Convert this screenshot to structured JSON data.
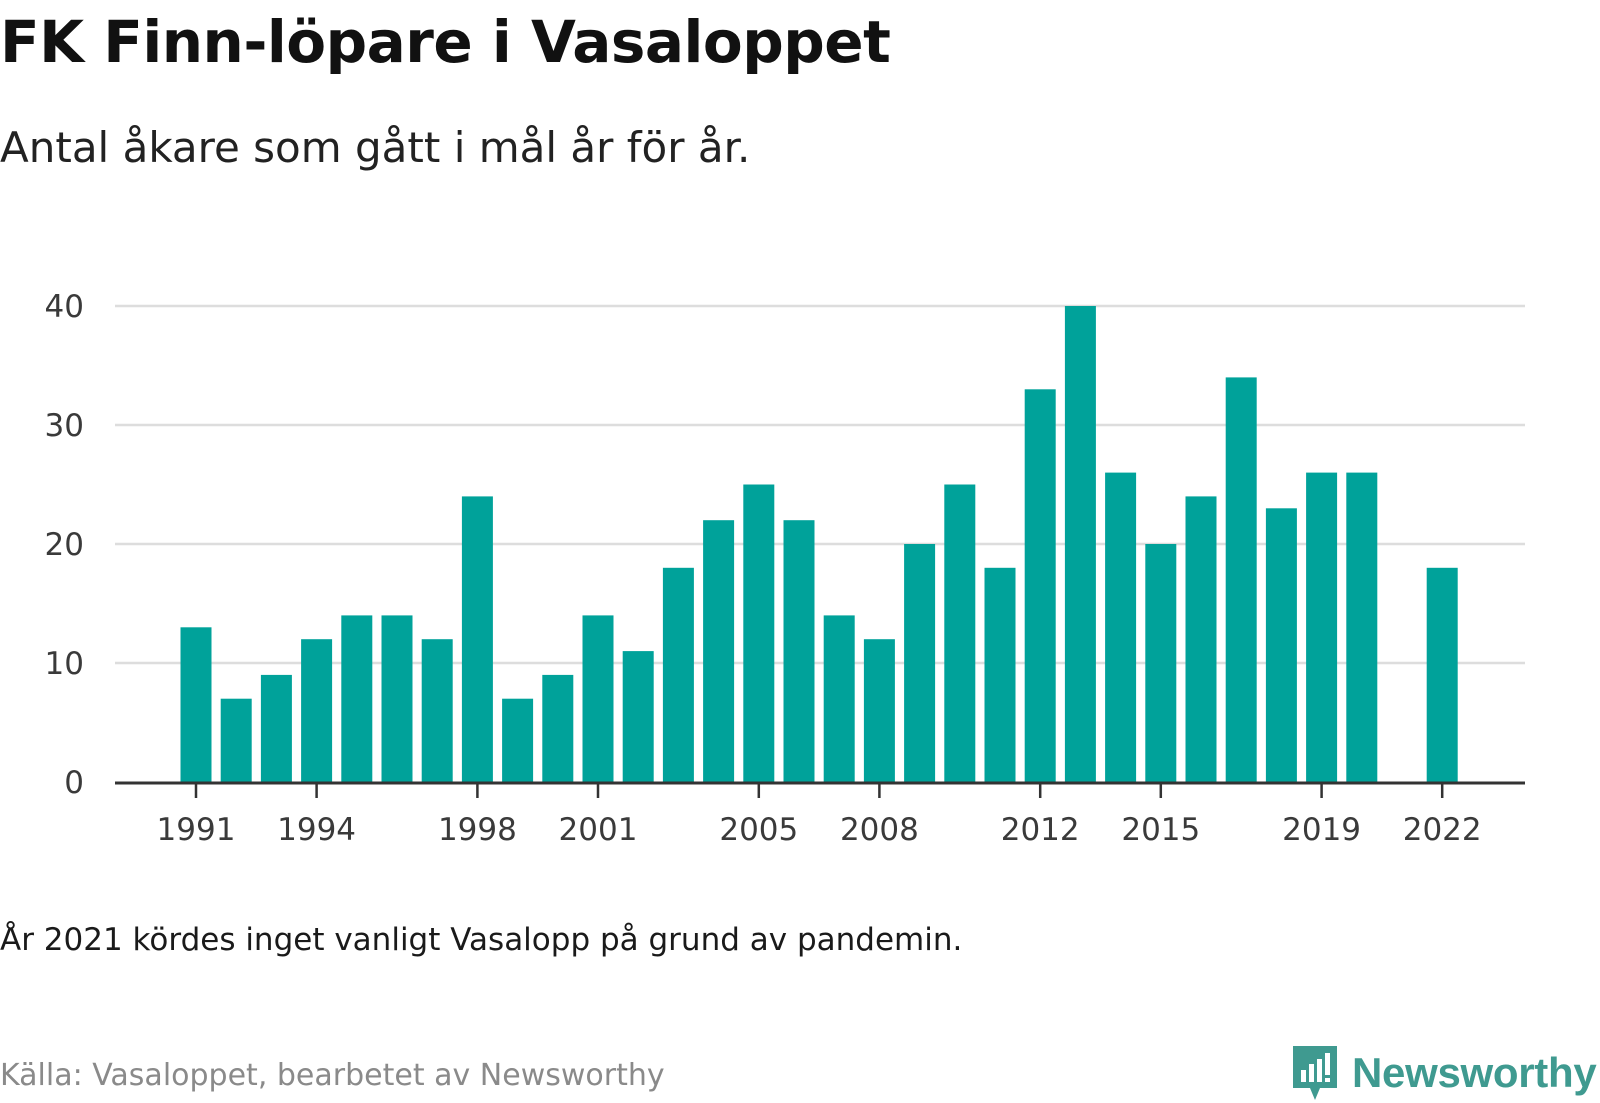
{
  "header": {
    "title": "FK Finn-löpare i Vasaloppet",
    "subtitle": "Antal åkare som gått i mål år för år."
  },
  "footer": {
    "note": "År 2021 kördes inget vanligt Vasalopp på grund av pandemin.",
    "source": "Källa: Vasaloppet, bearbetet av Newsworthy",
    "logo_text": "Newsworthy"
  },
  "colors": {
    "bar": "#00a29a",
    "grid": "#dddddd",
    "axis": "#333333",
    "logo": "#3f9a90"
  },
  "chart_data": {
    "type": "bar",
    "title": "FK Finn-löpare i Vasaloppet",
    "subtitle": "Antal åkare som gått i mål år för år.",
    "xlabel": "",
    "ylabel": "",
    "categories": [
      1991,
      1992,
      1993,
      1994,
      1995,
      1996,
      1997,
      1998,
      1999,
      2000,
      2001,
      2002,
      2003,
      2004,
      2005,
      2006,
      2007,
      2008,
      2009,
      2010,
      2011,
      2012,
      2013,
      2014,
      2015,
      2016,
      2017,
      2018,
      2019,
      2020,
      2021,
      2022
    ],
    "values": [
      13,
      7,
      9,
      12,
      14,
      14,
      12,
      24,
      7,
      9,
      14,
      11,
      18,
      22,
      25,
      22,
      14,
      12,
      20,
      25,
      18,
      33,
      40,
      26,
      20,
      24,
      34,
      23,
      26,
      26,
      null,
      18
    ],
    "x_tick_labels": [
      "1991",
      "1994",
      "1998",
      "2001",
      "2005",
      "2008",
      "2012",
      "2015",
      "2019",
      "2022"
    ],
    "y_ticks": [
      0,
      10,
      20,
      30,
      40
    ],
    "ylim": [
      0,
      40
    ],
    "grid": true,
    "legend": "none"
  }
}
